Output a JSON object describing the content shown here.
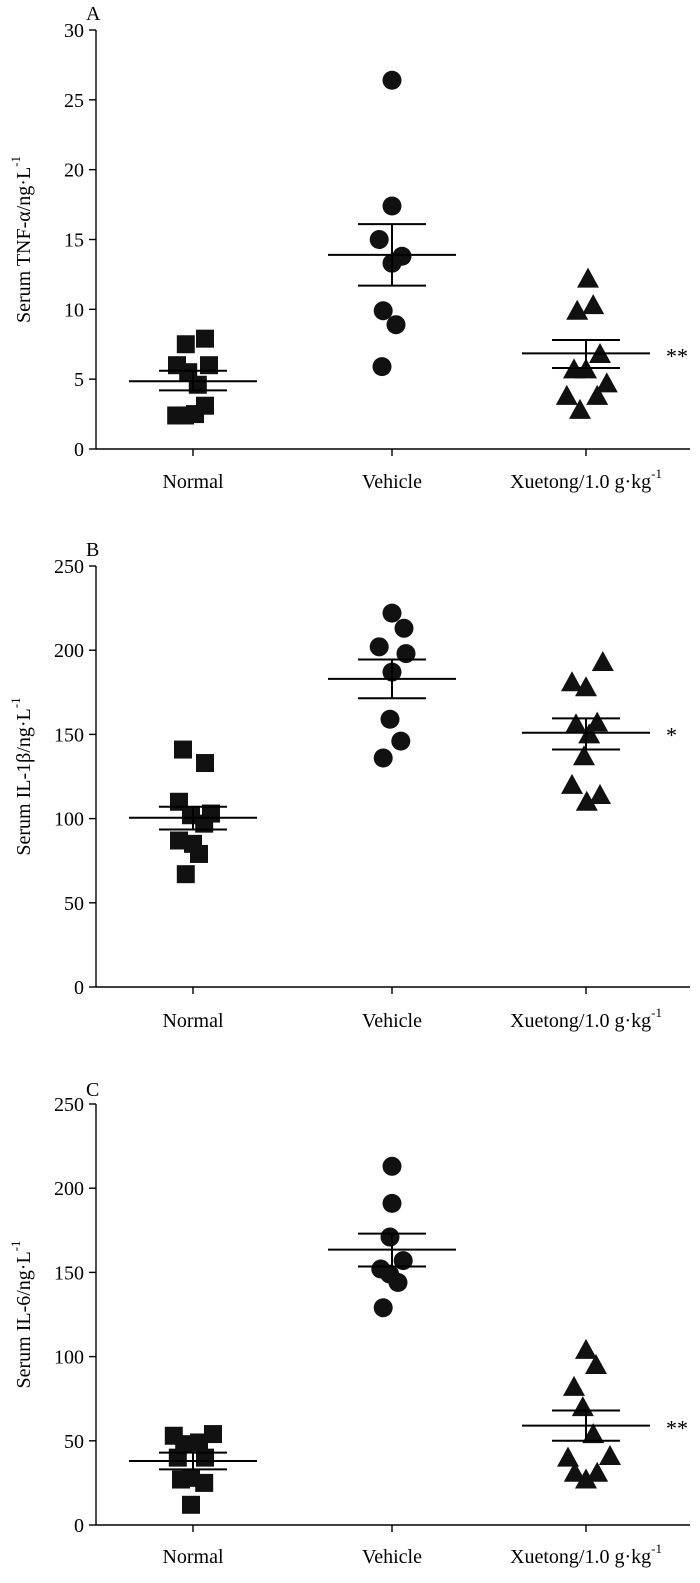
{
  "chart_data": [
    {
      "type": "scatter",
      "panel": "A",
      "ylabel": "Serum TNF-α/ng·L",
      "ylabel_sup": "-1",
      "ylim": [
        0,
        30
      ],
      "yticks": [
        0,
        5,
        10,
        15,
        20,
        25,
        30
      ],
      "categories": [
        "Normal",
        "Vehicle",
        "Xuetong/1.0 g·kg"
      ],
      "category_sup": [
        "",
        "",
        "-1"
      ],
      "marker": {
        "Normal": "square",
        "Vehicle": "circle",
        "Xuetong/1.0 g·kg": "triangle"
      },
      "series": [
        {
          "name": "Normal",
          "points": [
            [
              -0.4,
              6.0
            ],
            [
              -0.18,
              7.5
            ],
            [
              0.3,
              7.9
            ],
            [
              -0.12,
              5.5
            ],
            [
              0.12,
              4.6
            ],
            [
              0.4,
              6.0
            ],
            [
              -0.42,
              2.4
            ],
            [
              -0.2,
              2.4
            ],
            [
              0.05,
              2.5
            ],
            [
              0.3,
              3.1
            ]
          ],
          "mean": 4.85,
          "sem_low": 4.2,
          "sem_high": 5.6
        },
        {
          "name": "Vehicle",
          "points": [
            [
              0.0,
              26.4
            ],
            [
              0.0,
              17.4
            ],
            [
              -0.32,
              15.0
            ],
            [
              0.0,
              13.3
            ],
            [
              0.25,
              13.8
            ],
            [
              -0.22,
              9.9
            ],
            [
              0.1,
              8.9
            ],
            [
              -0.25,
              5.9
            ]
          ],
          "mean": 13.9,
          "sem_low": 11.7,
          "sem_high": 16.1
        },
        {
          "name": "Xuetong/1.0 g·kg",
          "points": [
            [
              0.05,
              12.2
            ],
            [
              -0.22,
              9.9
            ],
            [
              0.18,
              10.3
            ],
            [
              -0.3,
              5.7
            ],
            [
              0.0,
              5.7
            ],
            [
              0.35,
              6.8
            ],
            [
              0.52,
              4.7
            ],
            [
              -0.48,
              3.8
            ],
            [
              0.28,
              3.8
            ],
            [
              -0.15,
              2.8
            ]
          ],
          "mean": 6.85,
          "sem_low": 5.8,
          "sem_high": 7.8,
          "significance": "**"
        }
      ]
    },
    {
      "type": "scatter",
      "panel": "B",
      "ylabel": "Serum IL-1β/ng·L",
      "ylabel_sup": "-1",
      "ylim": [
        0,
        250
      ],
      "yticks": [
        0,
        50,
        100,
        150,
        200,
        250
      ],
      "categories": [
        "Normal",
        "Vehicle",
        "Xuetong/1.0 g·kg"
      ],
      "category_sup": [
        "",
        "",
        "-1"
      ],
      "marker": {
        "Normal": "square",
        "Vehicle": "circle",
        "Xuetong/1.0 g·kg": "triangle"
      },
      "series": [
        {
          "name": "Normal",
          "points": [
            [
              -0.25,
              141
            ],
            [
              0.3,
              133
            ],
            [
              -0.35,
              110
            ],
            [
              -0.05,
              102
            ],
            [
              0.45,
              103
            ],
            [
              0.28,
              97
            ],
            [
              -0.35,
              87
            ],
            [
              0.0,
              85
            ],
            [
              0.15,
              79
            ],
            [
              -0.18,
              67
            ]
          ],
          "mean": 100.5,
          "sem_low": 93.5,
          "sem_high": 107
        },
        {
          "name": "Vehicle",
          "points": [
            [
              0.0,
              222
            ],
            [
              0.3,
              213
            ],
            [
              -0.32,
              202
            ],
            [
              0.35,
              198
            ],
            [
              0.0,
              187
            ],
            [
              -0.05,
              159
            ],
            [
              0.22,
              146
            ],
            [
              -0.22,
              136
            ]
          ],
          "mean": 183,
          "sem_low": 171.5,
          "sem_high": 194.5
        },
        {
          "name": "Xuetong/1.0 g·kg",
          "points": [
            [
              0.42,
              193
            ],
            [
              -0.35,
              181
            ],
            [
              0.0,
              178
            ],
            [
              -0.25,
              156
            ],
            [
              0.28,
              157
            ],
            [
              0.08,
              150
            ],
            [
              -0.05,
              137
            ],
            [
              -0.35,
              120
            ],
            [
              0.35,
              114
            ],
            [
              0.02,
              110
            ]
          ],
          "mean": 151,
          "sem_low": 141,
          "sem_high": 159.5,
          "significance": "*"
        }
      ]
    },
    {
      "type": "scatter",
      "panel": "C",
      "ylabel": "Serum IL-6/ng·L",
      "ylabel_sup": "-1",
      "ylim": [
        0,
        250
      ],
      "yticks": [
        0,
        50,
        100,
        150,
        200,
        250
      ],
      "categories": [
        "Normal",
        "Vehicle",
        "Xuetong/1.0 g·kg"
      ],
      "category_sup": [
        "",
        "",
        "-1"
      ],
      "marker": {
        "Normal": "square",
        "Vehicle": "circle",
        "Xuetong/1.0 g·kg": "triangle"
      },
      "series": [
        {
          "name": "Normal",
          "points": [
            [
              -0.48,
              53
            ],
            [
              0.5,
              54
            ],
            [
              -0.22,
              48
            ],
            [
              0.15,
              49
            ],
            [
              -0.38,
              40
            ],
            [
              0.3,
              40
            ],
            [
              -0.3,
              27
            ],
            [
              -0.05,
              28
            ],
            [
              0.28,
              25
            ],
            [
              -0.05,
              12
            ]
          ],
          "mean": 38,
          "sem_low": 33,
          "sem_high": 43
        },
        {
          "name": "Vehicle",
          "points": [
            [
              0.0,
              213
            ],
            [
              0.0,
              191
            ],
            [
              -0.05,
              171
            ],
            [
              -0.28,
              152
            ],
            [
              -0.06,
              149
            ],
            [
              0.28,
              157
            ],
            [
              0.15,
              144
            ],
            [
              -0.22,
              129
            ]
          ],
          "mean": 163.5,
          "sem_low": 153.5,
          "sem_high": 173
        },
        {
          "name": "Xuetong/1.0 g·kg",
          "points": [
            [
              0.0,
              104
            ],
            [
              0.25,
              95
            ],
            [
              -0.3,
              82
            ],
            [
              -0.08,
              70
            ],
            [
              0.18,
              54
            ],
            [
              -0.45,
              40
            ],
            [
              0.6,
              41
            ],
            [
              -0.28,
              31
            ],
            [
              0.0,
              27
            ],
            [
              0.28,
              31
            ]
          ],
          "mean": 59,
          "sem_low": 50,
          "sem_high": 68,
          "significance": "**"
        }
      ]
    }
  ]
}
